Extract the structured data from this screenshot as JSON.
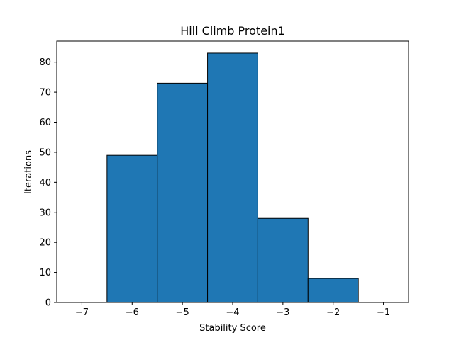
{
  "chart_data": {
    "type": "bar",
    "title": "Hill Climb Protein1",
    "xlabel": "Stability Score",
    "ylabel": "Iterations",
    "bins": [
      {
        "x0": -6.5,
        "x1": -5.5,
        "count": 49
      },
      {
        "x0": -5.5,
        "x1": -4.5,
        "count": 73
      },
      {
        "x0": -4.5,
        "x1": -3.5,
        "count": 83
      },
      {
        "x0": -3.5,
        "x1": -2.5,
        "count": 28
      },
      {
        "x0": -2.5,
        "x1": -1.5,
        "count": 8
      }
    ],
    "xlim": [
      -7.5,
      -0.5
    ],
    "ylim": [
      0,
      87
    ],
    "xticks": [
      -7,
      -6,
      -5,
      -4,
      -3,
      -2,
      -1
    ],
    "xtick_labels": [
      "−7",
      "−6",
      "−5",
      "−4",
      "−3",
      "−2",
      "−1"
    ],
    "yticks": [
      0,
      10,
      20,
      30,
      40,
      50,
      60,
      70,
      80
    ],
    "ytick_labels": [
      "0",
      "10",
      "20",
      "30",
      "40",
      "50",
      "60",
      "70",
      "80"
    ],
    "bar_color": "#1f77b4",
    "edge_color": "#000000",
    "grid": false,
    "legend": "none"
  }
}
